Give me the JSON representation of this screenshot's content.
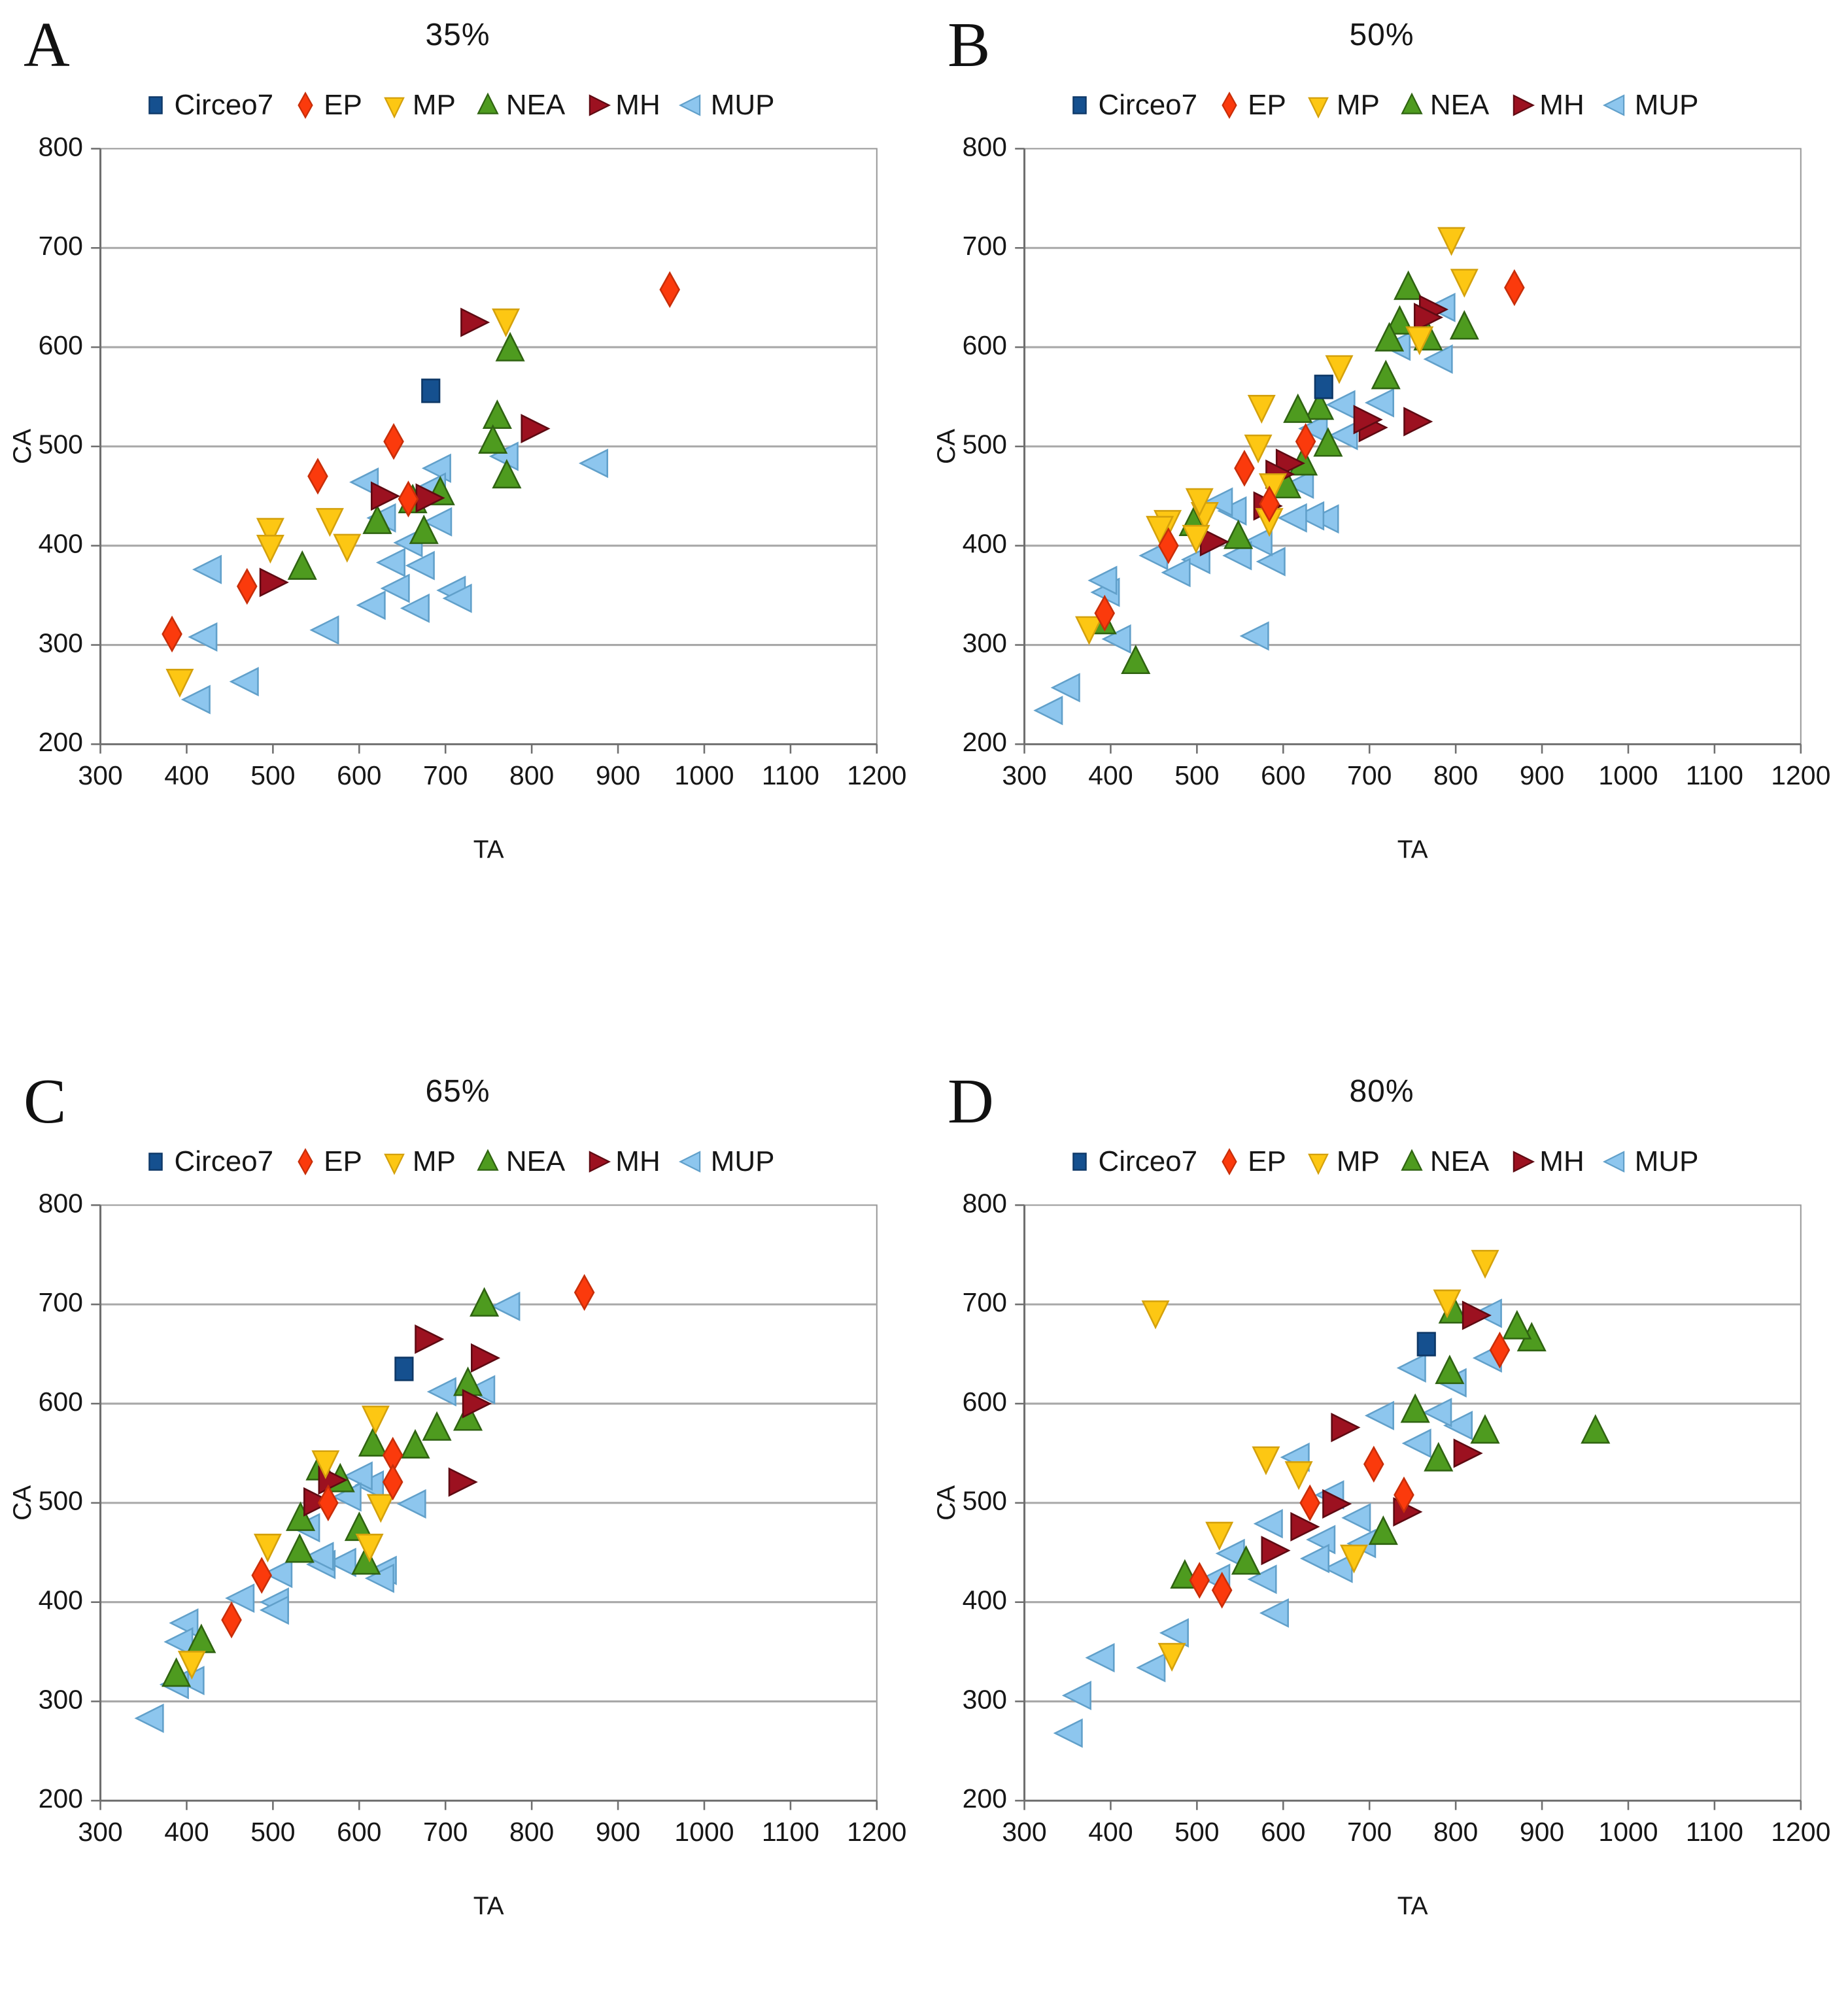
{
  "legend": {
    "items": [
      {
        "label": "Circeo7",
        "marker": "square",
        "fill": "#15508f",
        "stroke": "#0d3766"
      },
      {
        "label": "EP",
        "marker": "diamond",
        "fill": "#fb3a0c",
        "stroke": "#c82e09"
      },
      {
        "label": "MP",
        "marker": "triangle-down",
        "fill": "#fdc713",
        "stroke": "#d4a10c"
      },
      {
        "label": "NEA",
        "marker": "triangle-up",
        "fill": "#4e9b1f",
        "stroke": "#2f6311"
      },
      {
        "label": "MH",
        "marker": "triangle-right",
        "fill": "#9c1120",
        "stroke": "#5e0a12"
      },
      {
        "label": "MUP",
        "marker": "triangle-left",
        "fill": "#8dc6ee",
        "stroke": "#61a0ca"
      }
    ]
  },
  "axes": {
    "xlabel": "TA",
    "ylabel": "CA",
    "xlim": [
      300,
      1200
    ],
    "ylim": [
      200,
      800
    ],
    "xticks": [
      300,
      400,
      500,
      600,
      700,
      800,
      900,
      1000,
      1100,
      1200
    ],
    "yticks": [
      200,
      300,
      400,
      500,
      600,
      700,
      800
    ],
    "gridlines": "horizontal",
    "grid_color": "#a8a8a8",
    "box_color": "#9a9a9a",
    "axis_color": "#6f6f6f"
  },
  "chart_data": [
    {
      "type": "scatter",
      "letter": "A",
      "title": "35%",
      "series": [
        {
          "name": "Circeo7",
          "points": [
            [
              683,
              556
            ]
          ]
        },
        {
          "name": "EP",
          "points": [
            [
              960,
              658
            ],
            [
              640,
              505
            ],
            [
              552,
              470
            ],
            [
              657,
              447
            ],
            [
              470,
              359
            ],
            [
              383,
              311
            ]
          ]
        },
        {
          "name": "MP",
          "points": [
            [
              770,
              628
            ],
            [
              586,
              401
            ],
            [
              566,
              427
            ],
            [
              497,
              417
            ],
            [
              497,
              400
            ],
            [
              392,
              265
            ]
          ]
        },
        {
          "name": "NEA",
          "points": [
            [
              775,
              598
            ],
            [
              760,
              530
            ],
            [
              755,
              505
            ],
            [
              771,
              470
            ],
            [
              694,
              453
            ],
            [
              662,
              445
            ],
            [
              675,
              414
            ],
            [
              621,
              424
            ],
            [
              534,
              378
            ]
          ]
        },
        {
          "name": "MH",
          "points": [
            [
              730,
              625
            ],
            [
              800,
              518
            ],
            [
              678,
              448
            ],
            [
              626,
              450
            ],
            [
              497,
              363
            ]
          ]
        },
        {
          "name": "MUP",
          "points": [
            [
              876,
              483
            ],
            [
              772,
              490
            ],
            [
              694,
              478
            ],
            [
              688,
              459
            ],
            [
              610,
              464
            ],
            [
              695,
              424
            ],
            [
              630,
              428
            ],
            [
              661,
              403
            ],
            [
              675,
              380
            ],
            [
              641,
              383
            ],
            [
              711,
              355
            ],
            [
              718,
              347
            ],
            [
              646,
              357
            ],
            [
              669,
              337
            ],
            [
              618,
              340
            ],
            [
              564,
              315
            ],
            [
              471,
              263
            ],
            [
              428,
              376
            ],
            [
              423,
              308
            ],
            [
              415,
              245
            ]
          ]
        }
      ]
    },
    {
      "type": "scatter",
      "letter": "B",
      "title": "50%",
      "series": [
        {
          "name": "Circeo7",
          "points": [
            [
              647,
              560
            ]
          ]
        },
        {
          "name": "EP",
          "points": [
            [
              868,
              660
            ],
            [
              626,
              505
            ],
            [
              584,
              442
            ],
            [
              555,
              478
            ],
            [
              467,
              400
            ],
            [
              393,
              332
            ]
          ]
        },
        {
          "name": "MP",
          "points": [
            [
              795,
              710
            ],
            [
              810,
              668
            ],
            [
              758,
              610
            ],
            [
              665,
              581
            ],
            [
              588,
              462
            ],
            [
              584,
              427
            ],
            [
              575,
              541
            ],
            [
              571,
              501
            ],
            [
              509,
              433
            ],
            [
              503,
              447
            ],
            [
              499,
              410
            ],
            [
              466,
              425
            ],
            [
              457,
              419
            ],
            [
              375,
              318
            ]
          ]
        },
        {
          "name": "NEA",
          "points": [
            [
              810,
              620
            ],
            [
              768,
              609
            ],
            [
              745,
              660
            ],
            [
              735,
              625
            ],
            [
              723,
              608
            ],
            [
              719,
              570
            ],
            [
              652,
              502
            ],
            [
              642,
              539
            ],
            [
              623,
              483
            ],
            [
              617,
              536
            ],
            [
              604,
              460
            ],
            [
              548,
              409
            ],
            [
              496,
              422
            ],
            [
              429,
              283
            ],
            [
              390,
              323
            ]
          ]
        },
        {
          "name": "MH",
          "points": [
            [
              770,
              638
            ],
            [
              764,
              630
            ],
            [
              752,
              525
            ],
            [
              700,
              519
            ],
            [
              694,
              527
            ],
            [
              604,
              483
            ],
            [
              592,
              472
            ],
            [
              578,
              440
            ],
            [
              516,
              404
            ]
          ]
        },
        {
          "name": "MUP",
          "points": [
            [
              787,
              640
            ],
            [
              784,
              588
            ],
            [
              735,
              601
            ],
            [
              716,
              544
            ],
            [
              674,
              511
            ],
            [
              671,
              542
            ],
            [
              652,
              427
            ],
            [
              639,
              518
            ],
            [
              635,
              430
            ],
            [
              623,
              462
            ],
            [
              615,
              428
            ],
            [
              590,
              384
            ],
            [
              575,
              404
            ],
            [
              571,
              309
            ],
            [
              551,
              390
            ],
            [
              545,
              435
            ],
            [
              529,
              444
            ],
            [
              503,
              386
            ],
            [
              480,
              373
            ],
            [
              454,
              390
            ],
            [
              411,
              306
            ],
            [
              398,
              353
            ],
            [
              395,
              365
            ],
            [
              352,
              257
            ],
            [
              332,
              234
            ]
          ]
        }
      ]
    },
    {
      "type": "scatter",
      "letter": "C",
      "title": "65%",
      "series": [
        {
          "name": "Circeo7",
          "points": [
            [
              652,
              635
            ]
          ]
        },
        {
          "name": "EP",
          "points": [
            [
              861,
              712
            ],
            [
              639,
              548
            ],
            [
              639,
              521
            ],
            [
              564,
              500
            ],
            [
              487,
              427
            ],
            [
              452,
              382
            ]
          ]
        },
        {
          "name": "MP",
          "points": [
            [
              619,
              587
            ],
            [
              625,
              498
            ],
            [
              612,
              458
            ],
            [
              561,
              542
            ],
            [
              494,
              458
            ],
            [
              406,
              340
            ]
          ]
        },
        {
          "name": "NEA",
          "points": [
            [
              745,
              700
            ],
            [
              726,
              620
            ],
            [
              726,
              585
            ],
            [
              690,
              575
            ],
            [
              665,
              557
            ],
            [
              616,
              559
            ],
            [
              608,
              440
            ],
            [
              600,
              474
            ],
            [
              578,
              523
            ],
            [
              555,
              535
            ],
            [
              532,
              484
            ],
            [
              531,
              452
            ],
            [
              417,
              361
            ],
            [
              388,
              327
            ]
          ]
        },
        {
          "name": "MH",
          "points": [
            [
              742,
              646
            ],
            [
              732,
              600
            ],
            [
              716,
              521
            ],
            [
              677,
              665
            ],
            [
              565,
              523
            ],
            [
              548,
              501
            ]
          ]
        },
        {
          "name": "MUP",
          "points": [
            [
              774,
              698
            ],
            [
              745,
              614
            ],
            [
              700,
              612
            ],
            [
              665,
              499
            ],
            [
              631,
              432
            ],
            [
              628,
              424
            ],
            [
              616,
              518
            ],
            [
              603,
              527
            ],
            [
              590,
              506
            ],
            [
              584,
              440
            ],
            [
              560,
              438
            ],
            [
              558,
              446
            ],
            [
              542,
              475
            ],
            [
              510,
              429
            ],
            [
              506,
              400
            ],
            [
              506,
              392
            ],
            [
              466,
              404
            ],
            [
              401,
              379
            ],
            [
              395,
              360
            ],
            [
              408,
              321
            ],
            [
              390,
              317
            ],
            [
              361,
              283
            ]
          ]
        }
      ]
    },
    {
      "type": "scatter",
      "letter": "D",
      "title": "80%",
      "series": [
        {
          "name": "Circeo7",
          "points": [
            [
              766,
              660
            ]
          ]
        },
        {
          "name": "EP",
          "points": [
            [
              851,
              654
            ],
            [
              740,
              508
            ],
            [
              705,
              539
            ],
            [
              631,
              500
            ],
            [
              529,
              412
            ],
            [
              503,
              422
            ]
          ]
        },
        {
          "name": "MP",
          "points": [
            [
              834,
              744
            ],
            [
              790,
              704
            ],
            [
              682,
              447
            ],
            [
              618,
              531
            ],
            [
              580,
              546
            ],
            [
              526,
              470
            ],
            [
              471,
              348
            ],
            [
              452,
              693
            ]
          ]
        },
        {
          "name": "NEA",
          "points": [
            [
              962,
              572
            ],
            [
              888,
              665
            ],
            [
              871,
              677
            ],
            [
              834,
              572
            ],
            [
              797,
              693
            ],
            [
              793,
              632
            ],
            [
              780,
              544
            ],
            [
              753,
              593
            ],
            [
              716,
              470
            ],
            [
              557,
              440
            ],
            [
              486,
              426
            ]
          ]
        },
        {
          "name": "MH",
          "points": [
            [
              820,
              689
            ],
            [
              810,
              550
            ],
            [
              740,
              491
            ],
            [
              668,
              576
            ],
            [
              658,
              499
            ],
            [
              621,
              476
            ],
            [
              587,
              452
            ]
          ]
        },
        {
          "name": "MUP",
          "points": [
            [
              841,
              691
            ],
            [
              841,
              646
            ],
            [
              807,
              578
            ],
            [
              800,
              621
            ],
            [
              783,
              591
            ],
            [
              759,
              560
            ],
            [
              753,
              636
            ],
            [
              716,
              588
            ],
            [
              695,
              459
            ],
            [
              689,
              485
            ],
            [
              668,
              434
            ],
            [
              658,
              508
            ],
            [
              648,
              463
            ],
            [
              641,
              444
            ],
            [
              618,
              546
            ],
            [
              594,
              389
            ],
            [
              587,
              479
            ],
            [
              580,
              423
            ],
            [
              543,
              449
            ],
            [
              526,
              424
            ],
            [
              478,
              369
            ],
            [
              451,
              334
            ],
            [
              392,
              344
            ],
            [
              365,
              306
            ],
            [
              355,
              268
            ]
          ]
        }
      ]
    }
  ]
}
